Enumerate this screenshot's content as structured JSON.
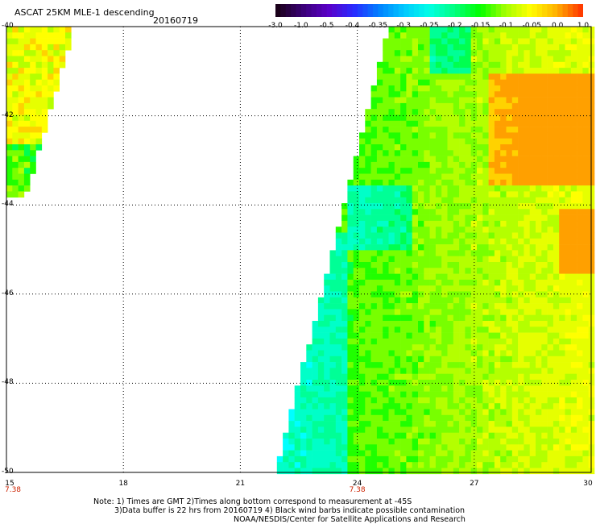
{
  "title": "ASCAT 25KM MLE-1 descending",
  "date": "20160719",
  "colorbar": {
    "labels": [
      "-3.0",
      "-1.0",
      "-0.5",
      "-0.4",
      "-0.35",
      "-0.3",
      "-0.25",
      "-0.2",
      "-0.15",
      "-0.1",
      "-0.05",
      "0.0",
      "1.0"
    ],
    "colors": [
      "#1a001a",
      "#3a0078",
      "#5a00c8",
      "#2a2aff",
      "#0080ff",
      "#00c8ff",
      "#00ffe6",
      "#00ff80",
      "#00ff00",
      "#a0ff00",
      "#ffff00",
      "#ffb400",
      "#ff3c00"
    ]
  },
  "map": {
    "lat_labels": [
      "-40",
      "-42",
      "-44",
      "-46",
      "-48",
      "-50"
    ],
    "lon_labels": [
      "15",
      "18",
      "21",
      "24",
      "27",
      "30"
    ],
    "lat_range": [
      -50,
      -40
    ],
    "lon_range": [
      15,
      30
    ],
    "time_labels": [
      {
        "lon": 15,
        "text": "7.38"
      },
      {
        "lon": 24,
        "text": "7.38"
      }
    ],
    "grid": "dotted"
  },
  "notes": {
    "line1": "Note: 1) Times are GMT 2)Times along bottom correspond to measurement at -45S",
    "line2": "3)Data buffer is 22 hrs from 20160719 4) Black wind barbs indicate possible contamination",
    "line3": "NOAA/NESDIS/Center for Satellite Applications and Research"
  }
}
